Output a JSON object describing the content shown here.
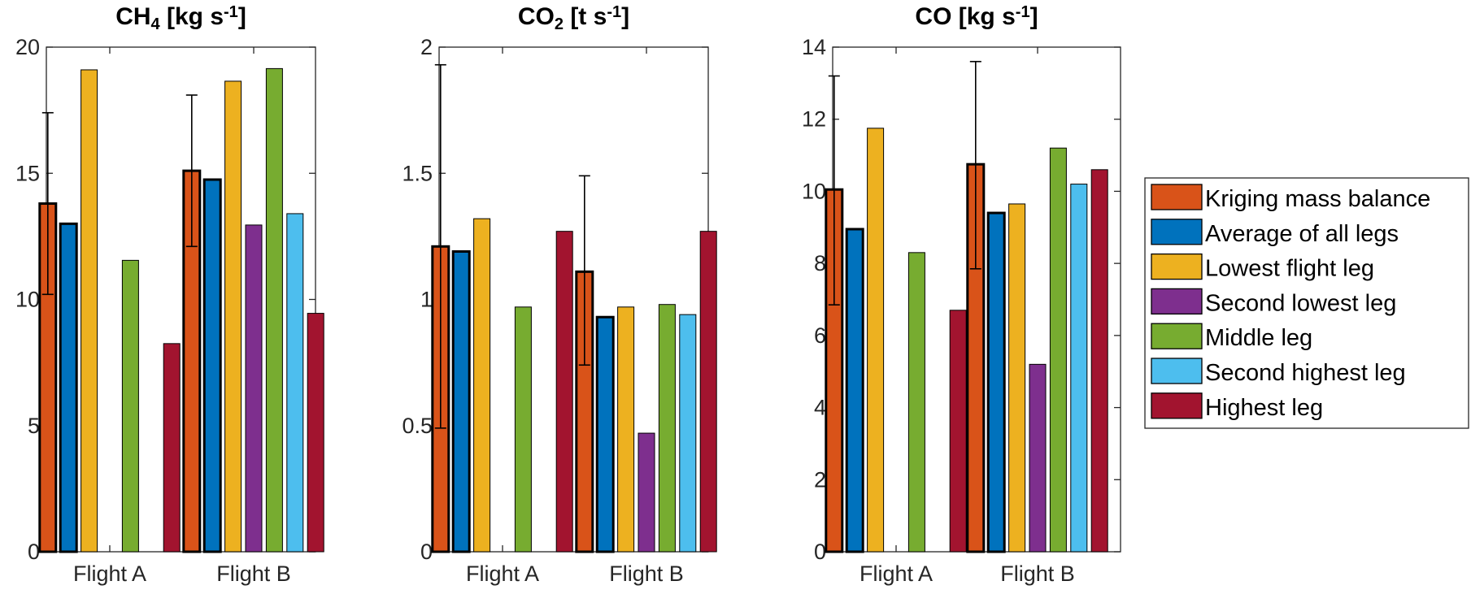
{
  "legend": {
    "location": "right",
    "entries": [
      {
        "label": "Kriging mass balance",
        "color": "#D95319"
      },
      {
        "label": "Average of all legs",
        "color": "#0072BD"
      },
      {
        "label": "Lowest flight leg",
        "color": "#EDB120"
      },
      {
        "label": "Second lowest leg",
        "color": "#7E2F8E"
      },
      {
        "label": "Middle leg",
        "color": "#77AC30"
      },
      {
        "label": "Second highest leg",
        "color": "#4DBEEE"
      },
      {
        "label": "Highest leg",
        "color": "#A2142F"
      }
    ]
  },
  "chart_data": [
    {
      "type": "bar",
      "title_main": "CH",
      "title_sub": "4",
      "title_rest": " [kg s",
      "title_sup": "-1",
      "title_end": "]",
      "categories": [
        "Flight A",
        "Flight B"
      ],
      "ylim": [
        0,
        20
      ],
      "yticks": [
        0,
        5,
        10,
        15,
        20
      ],
      "ytick_labels": [
        "0",
        "5",
        "10",
        "15",
        "20"
      ],
      "series": [
        {
          "name": "Kriging mass balance",
          "values": [
            13.8,
            15.1
          ],
          "error_low": [
            10.2,
            12.1
          ],
          "error_high": [
            17.4,
            18.1
          ]
        },
        {
          "name": "Average of all legs",
          "values": [
            13.0,
            14.75
          ]
        },
        {
          "name": "Lowest flight leg",
          "values": [
            19.1,
            18.65
          ]
        },
        {
          "name": "Second lowest leg",
          "values": [
            null,
            12.95
          ]
        },
        {
          "name": "Middle leg",
          "values": [
            11.55,
            19.15
          ]
        },
        {
          "name": "Second highest leg",
          "values": [
            null,
            13.4
          ]
        },
        {
          "name": "Highest leg",
          "values": [
            8.25,
            9.45
          ]
        }
      ]
    },
    {
      "type": "bar",
      "title_main": "CO",
      "title_sub": "2",
      "title_rest": " [t s",
      "title_sup": "-1",
      "title_end": "]",
      "categories": [
        "Flight A",
        "Flight B"
      ],
      "ylim": [
        0,
        2
      ],
      "yticks": [
        0,
        0.5,
        1,
        1.5,
        2
      ],
      "ytick_labels": [
        "0",
        "0.5",
        "1",
        "1.5",
        "2"
      ],
      "series": [
        {
          "name": "Kriging mass balance",
          "values": [
            1.21,
            1.11
          ],
          "error_low": [
            0.49,
            0.74
          ],
          "error_high": [
            1.93,
            1.49
          ]
        },
        {
          "name": "Average of all legs",
          "values": [
            1.19,
            0.93
          ]
        },
        {
          "name": "Lowest flight leg",
          "values": [
            1.32,
            0.97
          ]
        },
        {
          "name": "Second lowest leg",
          "values": [
            null,
            0.47
          ]
        },
        {
          "name": "Middle leg",
          "values": [
            0.97,
            0.98
          ]
        },
        {
          "name": "Second highest leg",
          "values": [
            null,
            0.94
          ]
        },
        {
          "name": "Highest leg",
          "values": [
            1.27,
            1.27
          ]
        }
      ]
    },
    {
      "type": "bar",
      "title_main": "CO",
      "title_sub": "",
      "title_rest": " [kg s",
      "title_sup": "-1",
      "title_end": "]",
      "categories": [
        "Flight A",
        "Flight B"
      ],
      "ylim": [
        0,
        14
      ],
      "yticks": [
        0,
        2,
        4,
        6,
        8,
        10,
        12,
        14
      ],
      "ytick_labels": [
        "0",
        "2",
        "4",
        "6",
        "8",
        "10",
        "12",
        "14"
      ],
      "series": [
        {
          "name": "Kriging mass balance",
          "values": [
            10.05,
            10.75
          ],
          "error_low": [
            6.85,
            7.85
          ],
          "error_high": [
            13.2,
            13.6
          ]
        },
        {
          "name": "Average of all legs",
          "values": [
            8.95,
            9.4
          ]
        },
        {
          "name": "Lowest flight leg",
          "values": [
            11.75,
            9.65
          ]
        },
        {
          "name": "Second lowest leg",
          "values": [
            null,
            5.2
          ]
        },
        {
          "name": "Middle leg",
          "values": [
            8.3,
            11.2
          ]
        },
        {
          "name": "Second highest leg",
          "values": [
            null,
            10.2
          ]
        },
        {
          "name": "Highest leg",
          "values": [
            6.7,
            10.6
          ]
        }
      ]
    }
  ]
}
